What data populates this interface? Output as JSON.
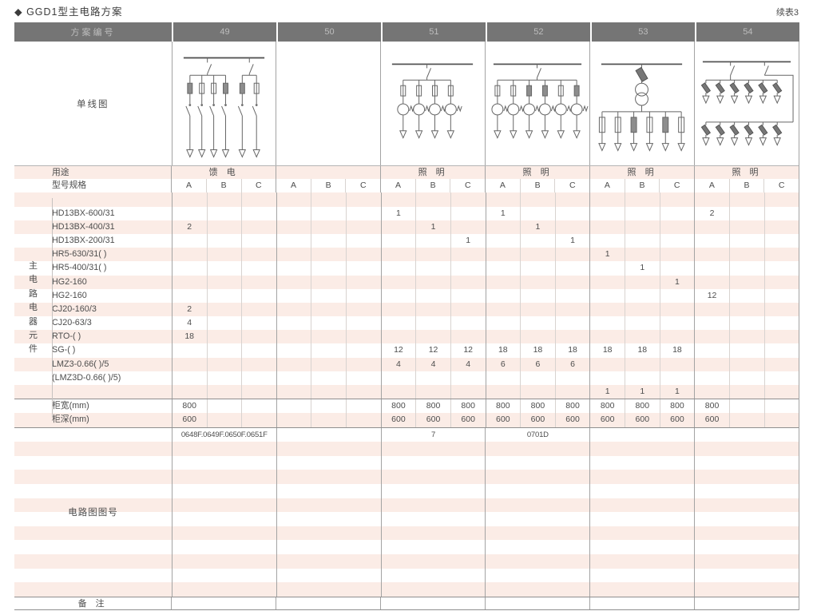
{
  "title": "◆ GGD1型主电路方案",
  "continuation": "续表3",
  "header": {
    "scheme_label": "方案编号",
    "schemes": [
      "49",
      "50",
      "51",
      "52",
      "53",
      "54"
    ]
  },
  "diagram_row": {
    "label": "单线图"
  },
  "usage_row": {
    "label": "用途",
    "values": [
      "馈 电",
      "",
      "照 明",
      "照 明",
      "照 明",
      "照 明"
    ]
  },
  "spec_row": {
    "label": "型号规格",
    "columns": [
      "A",
      "B",
      "C"
    ]
  },
  "side_label": {
    "chars": [
      "主",
      "电",
      "路",
      "电",
      "器",
      "元",
      "件"
    ]
  },
  "components": {
    "rows": [
      {
        "label": "",
        "cells": [
          "",
          "",
          "",
          "",
          "",
          "",
          "",
          "",
          "",
          "",
          "",
          "",
          "",
          "",
          "",
          "",
          "",
          ""
        ]
      },
      {
        "label": "HD13BX-600/31",
        "cells": [
          "",
          "",
          "",
          "",
          "",
          "",
          "1",
          "",
          "",
          "1",
          "",
          "",
          "",
          "",
          "",
          "2",
          "",
          ""
        ]
      },
      {
        "label": "HD13BX-400/31",
        "cells": [
          "2",
          "",
          "",
          "",
          "",
          "",
          "",
          "1",
          "",
          "",
          "1",
          "",
          "",
          "",
          "",
          "",
          "",
          ""
        ]
      },
      {
        "label": "HD13BX-200/31",
        "cells": [
          "",
          "",
          "",
          "",
          "",
          "",
          "",
          "",
          "1",
          "",
          "",
          "1",
          "",
          "",
          "",
          "",
          "",
          ""
        ]
      },
      {
        "label": "HR5-630/31( )",
        "cells": [
          "",
          "",
          "",
          "",
          "",
          "",
          "",
          "",
          "",
          "",
          "",
          "",
          "1",
          "",
          "",
          "",
          "",
          ""
        ]
      },
      {
        "label": "HR5-400/31( )",
        "cells": [
          "",
          "",
          "",
          "",
          "",
          "",
          "",
          "",
          "",
          "",
          "",
          "",
          "",
          "1",
          "",
          "",
          "",
          ""
        ]
      },
      {
        "label": "HG2-160",
        "cells": [
          "",
          "",
          "",
          "",
          "",
          "",
          "",
          "",
          "",
          "",
          "",
          "",
          "",
          "",
          "1",
          "",
          "",
          ""
        ]
      },
      {
        "label": "HG2-160",
        "cells": [
          "",
          "",
          "",
          "",
          "",
          "",
          "",
          "",
          "",
          "",
          "",
          "",
          "",
          "",
          "",
          "12",
          "",
          ""
        ]
      },
      {
        "label": "CJ20-160/3",
        "cells": [
          "2",
          "",
          "",
          "",
          "",
          "",
          "",
          "",
          "",
          "",
          "",
          "",
          "",
          "",
          "",
          "",
          "",
          ""
        ]
      },
      {
        "label": "CJ20-63/3",
        "cells": [
          "4",
          "",
          "",
          "",
          "",
          "",
          "",
          "",
          "",
          "",
          "",
          "",
          "",
          "",
          "",
          "",
          "",
          ""
        ]
      },
      {
        "label": "RTO-( )",
        "cells": [
          "18",
          "",
          "",
          "",
          "",
          "",
          "",
          "",
          "",
          "",
          "",
          "",
          "",
          "",
          "",
          "",
          "",
          ""
        ]
      },
      {
        "label": "SG-( )",
        "cells": [
          "",
          "",
          "",
          "",
          "",
          "",
          "12",
          "12",
          "12",
          "18",
          "18",
          "18",
          "18",
          "18",
          "18",
          "",
          "",
          ""
        ]
      },
      {
        "label": "LMZ3-0.66( )/5",
        "cells": [
          "",
          "",
          "",
          "",
          "",
          "",
          "4",
          "4",
          "4",
          "6",
          "6",
          "6",
          "",
          "",
          "",
          "",
          "",
          ""
        ]
      },
      {
        "label": "(LMZ3D-0.66( )/5)",
        "cells": [
          "",
          "",
          "",
          "",
          "",
          "",
          "",
          "",
          "",
          "",
          "",
          "",
          "",
          "",
          "",
          "",
          "",
          ""
        ]
      },
      {
        "label": "",
        "cells": [
          "",
          "",
          "",
          "",
          "",
          "",
          "",
          "",
          "",
          "",
          "",
          "",
          "1",
          "1",
          "1",
          "",
          "",
          ""
        ]
      }
    ]
  },
  "dimensions": {
    "rows": [
      {
        "label": "柜宽(mm)",
        "cells": [
          "800",
          "",
          "",
          "",
          "",
          "",
          "800",
          "800",
          "800",
          "800",
          "800",
          "800",
          "800",
          "800",
          "800",
          "800",
          "",
          ""
        ]
      },
      {
        "label": "柜深(mm)",
        "cells": [
          "600",
          "",
          "",
          "",
          "",
          "",
          "600",
          "600",
          "600",
          "600",
          "600",
          "600",
          "600",
          "600",
          "600",
          "600",
          "",
          ""
        ]
      }
    ]
  },
  "diagram_numbers": {
    "label": "电路图图号",
    "values": [
      "0648F.0649F.0650F.0651F",
      "",
      "7",
      "0701D",
      "",
      ""
    ],
    "rows": 12
  },
  "remarks": {
    "label": "备 注",
    "values": [
      "",
      "",
      "",
      "",
      "",
      ""
    ]
  },
  "colors": {
    "header_bg": "#757575",
    "header_text": "#bdbdbd",
    "stripe_pink": "#fbece6",
    "border": "#a3a3a3",
    "border_light": "#d8d3d0",
    "text": "#4d4d4d"
  }
}
